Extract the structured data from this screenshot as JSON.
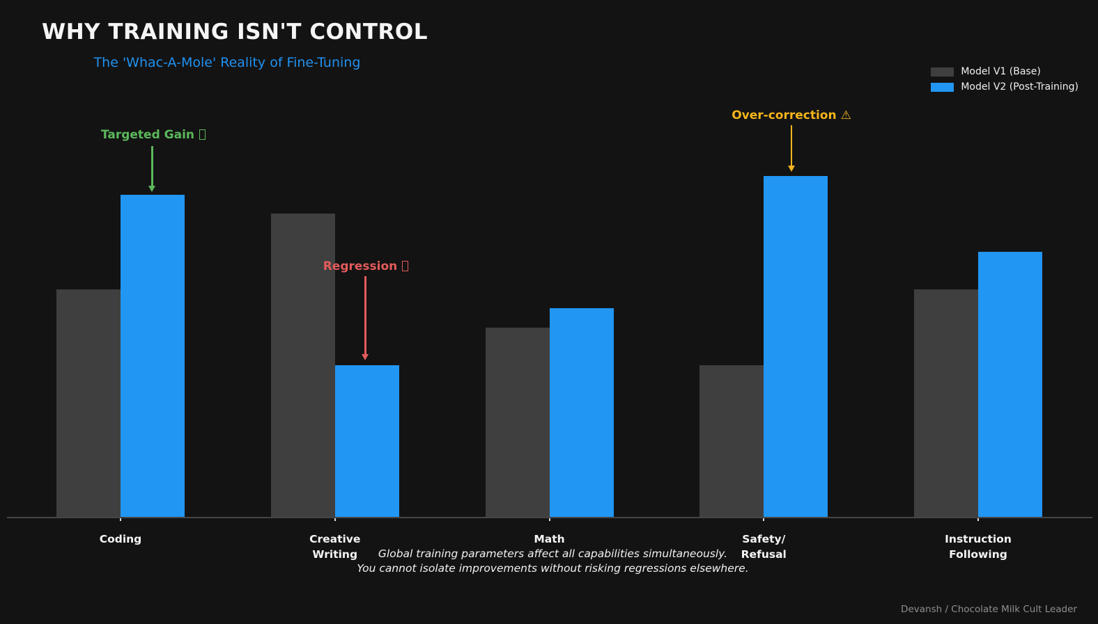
{
  "title": "WHY TRAINING ISN'T CONTROL",
  "subtitle": "The 'Whac-A-Mole' Reality of Fine-Tuning",
  "legend": {
    "position": "upper right",
    "v1_label": "Model V1 (Base)",
    "v2_label": "Model V2 (Post-Training)"
  },
  "colors": {
    "background": "#131313",
    "v1_bar": "#3f3f3f",
    "v2_bar": "#2196f3",
    "subtitle_accent": "#2191f0",
    "targeted_gain": "#5cb85c",
    "regression": "#e45b5b",
    "over_correction": "#f5b41d",
    "axis_line": "#454545",
    "credit_gray": "#8f8f8f"
  },
  "annotations": {
    "targeted_gain": {
      "label": "Targeted Gain",
      "icon": "missing-glyph-box",
      "color": "#5cb85c",
      "points_to": "Coding — Model V2 bar"
    },
    "regression": {
      "label": "Regression",
      "icon": "missing-glyph-box",
      "color": "#e45b5b",
      "points_to": "Creative Writing — Model V2 bar"
    },
    "over_correction": {
      "label": "Over-correction",
      "icon": "⚠",
      "color": "#f5b41d",
      "points_to": "Safety/Refusal — Model V2 bar"
    }
  },
  "footnote": {
    "line1": "Global training parameters affect all capabilities simultaneously.",
    "line2": "You cannot isolate improvements without risking regressions elsewhere."
  },
  "credit": "Devansh / Chocolate Milk Cult Leader",
  "chart_data": {
    "type": "bar",
    "title": "WHY TRAINING ISN'T CONTROL",
    "subtitle": "The 'Whac-A-Mole' Reality of Fine-Tuning",
    "categories": [
      "Coding",
      "Creative Writing",
      "Math",
      "Safety/Refusal",
      "Instruction Following"
    ],
    "category_label_lines": [
      [
        "Coding"
      ],
      [
        "Creative",
        "Writing"
      ],
      [
        "Math"
      ],
      [
        "Safety/",
        "Refusal"
      ],
      [
        "Instruction",
        "Following"
      ]
    ],
    "series": [
      {
        "name": "Model V1 (Base)",
        "color": "#3f3f3f",
        "values": [
          60,
          80,
          50,
          40,
          60
        ]
      },
      {
        "name": "Model V2 (Post-Training)",
        "color": "#2196f3",
        "values": [
          85,
          40,
          55,
          90,
          70
        ]
      }
    ],
    "ylim": [
      0,
      100
    ],
    "y_axis_visible": false,
    "grid": false,
    "legend_position": "upper right",
    "xlabel": "",
    "ylabel": ""
  }
}
